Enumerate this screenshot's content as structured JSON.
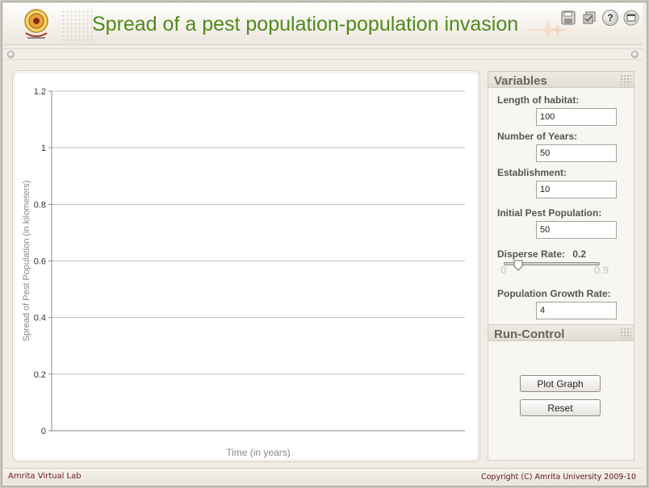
{
  "header": {
    "title": "Spread of a pest population-population invasion",
    "toolbar": [
      {
        "icon": "save-icon"
      },
      {
        "icon": "copy-icon"
      },
      {
        "icon": "help-icon",
        "glyph": "?"
      },
      {
        "icon": "fullscreen-icon"
      }
    ]
  },
  "chart_data": {
    "type": "line",
    "title": "",
    "xlabel": "Time (in years)",
    "ylabel": "Spread of Pest Population (in kilometers)",
    "ylim": [
      0,
      1.2
    ],
    "y_ticks": [
      "0",
      "0.2",
      "0.4",
      "0.6",
      "0.8",
      "1",
      "1.2"
    ],
    "y_tick_values": [
      0,
      0.2,
      0.4,
      0.6,
      0.8,
      1,
      1.2
    ],
    "grid": true,
    "series": []
  },
  "variables": {
    "title": "Variables",
    "length_of_habitat": {
      "label": "Length of habitat:",
      "value": "100"
    },
    "number_of_years": {
      "label": "Number of Years:",
      "value": "50"
    },
    "establishment": {
      "label": "Establishment:",
      "value": "10"
    },
    "initial_pest_population": {
      "label": "Initial Pest Population:",
      "value": "50"
    },
    "disperse_rate": {
      "label": "Disperse Rate:",
      "value": "0.2",
      "min": "0",
      "max": "0.9",
      "fraction": 0.22
    },
    "population_growth_rate": {
      "label": "Population Growth Rate:",
      "value": "4"
    }
  },
  "run_control": {
    "title": "Run-Control",
    "plot_button": "Plot Graph",
    "reset_button": "Reset"
  },
  "footer": {
    "left": "Amrita Virtual Lab",
    "right": "Copyright (C) Amrita University 2009-10"
  },
  "colors": {
    "title_green": "#4f8a1d",
    "footer_text": "#6a1b1b"
  }
}
